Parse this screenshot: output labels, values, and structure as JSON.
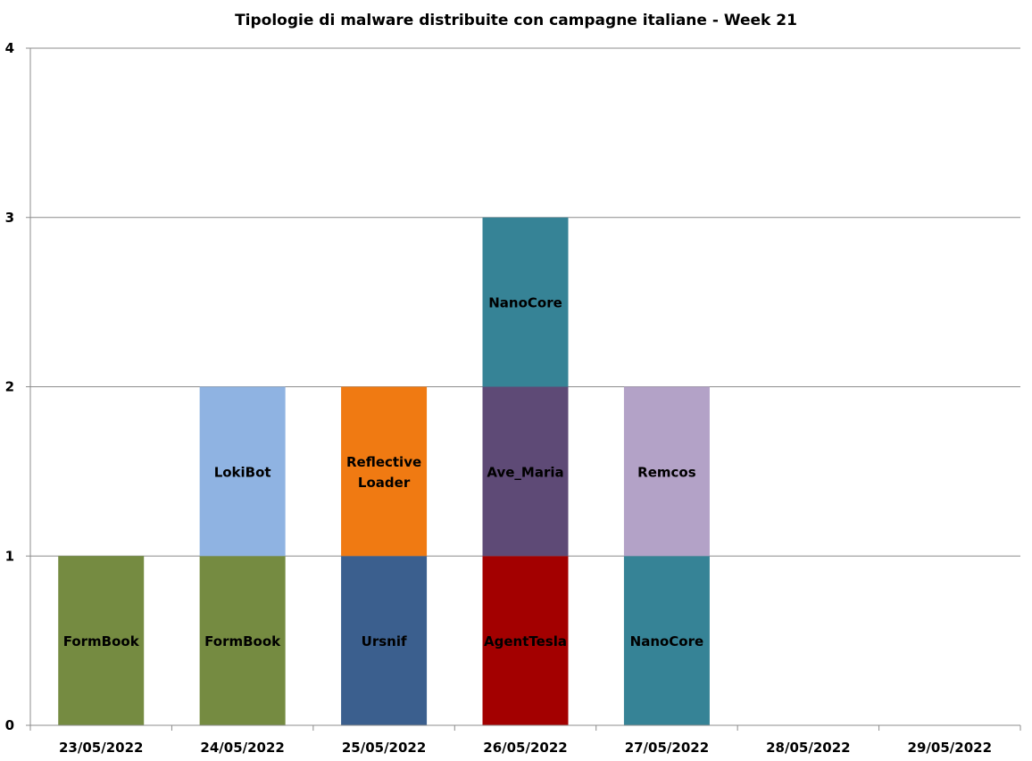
{
  "chart_data": {
    "type": "bar",
    "stacked": true,
    "title": "Tipologie  di malware distribuite con campagne italiane - Week 21",
    "xlabel": "",
    "ylabel": "",
    "ylim": [
      0,
      4
    ],
    "yticks": [
      0,
      1,
      2,
      3,
      4
    ],
    "grid": true,
    "categories": [
      "23/05/2022",
      "24/05/2022",
      "25/05/2022",
      "26/05/2022",
      "27/05/2022",
      "28/05/2022",
      "29/05/2022"
    ],
    "stacks": [
      [
        {
          "label": "FormBook",
          "value": 1,
          "color": "#758B41"
        }
      ],
      [
        {
          "label": "FormBook",
          "value": 1,
          "color": "#758B41"
        },
        {
          "label": "LokiBot",
          "value": 1,
          "color": "#8FB3E2"
        }
      ],
      [
        {
          "label": "Ursnif",
          "value": 1,
          "color": "#3B5F8E"
        },
        {
          "label": "Reflective Loader",
          "value": 1,
          "color": "#F07A12"
        }
      ],
      [
        {
          "label": "AgentTesla",
          "value": 1,
          "color": "#A30000"
        },
        {
          "label": "Ave_Maria",
          "value": 1,
          "color": "#5E4A76"
        },
        {
          "label": "NanoCore",
          "value": 1,
          "color": "#368396"
        }
      ],
      [
        {
          "label": "NanoCore",
          "value": 1,
          "color": "#368396"
        },
        {
          "label": "Remcos",
          "value": 1,
          "color": "#B3A2C7"
        }
      ],
      [],
      []
    ]
  }
}
